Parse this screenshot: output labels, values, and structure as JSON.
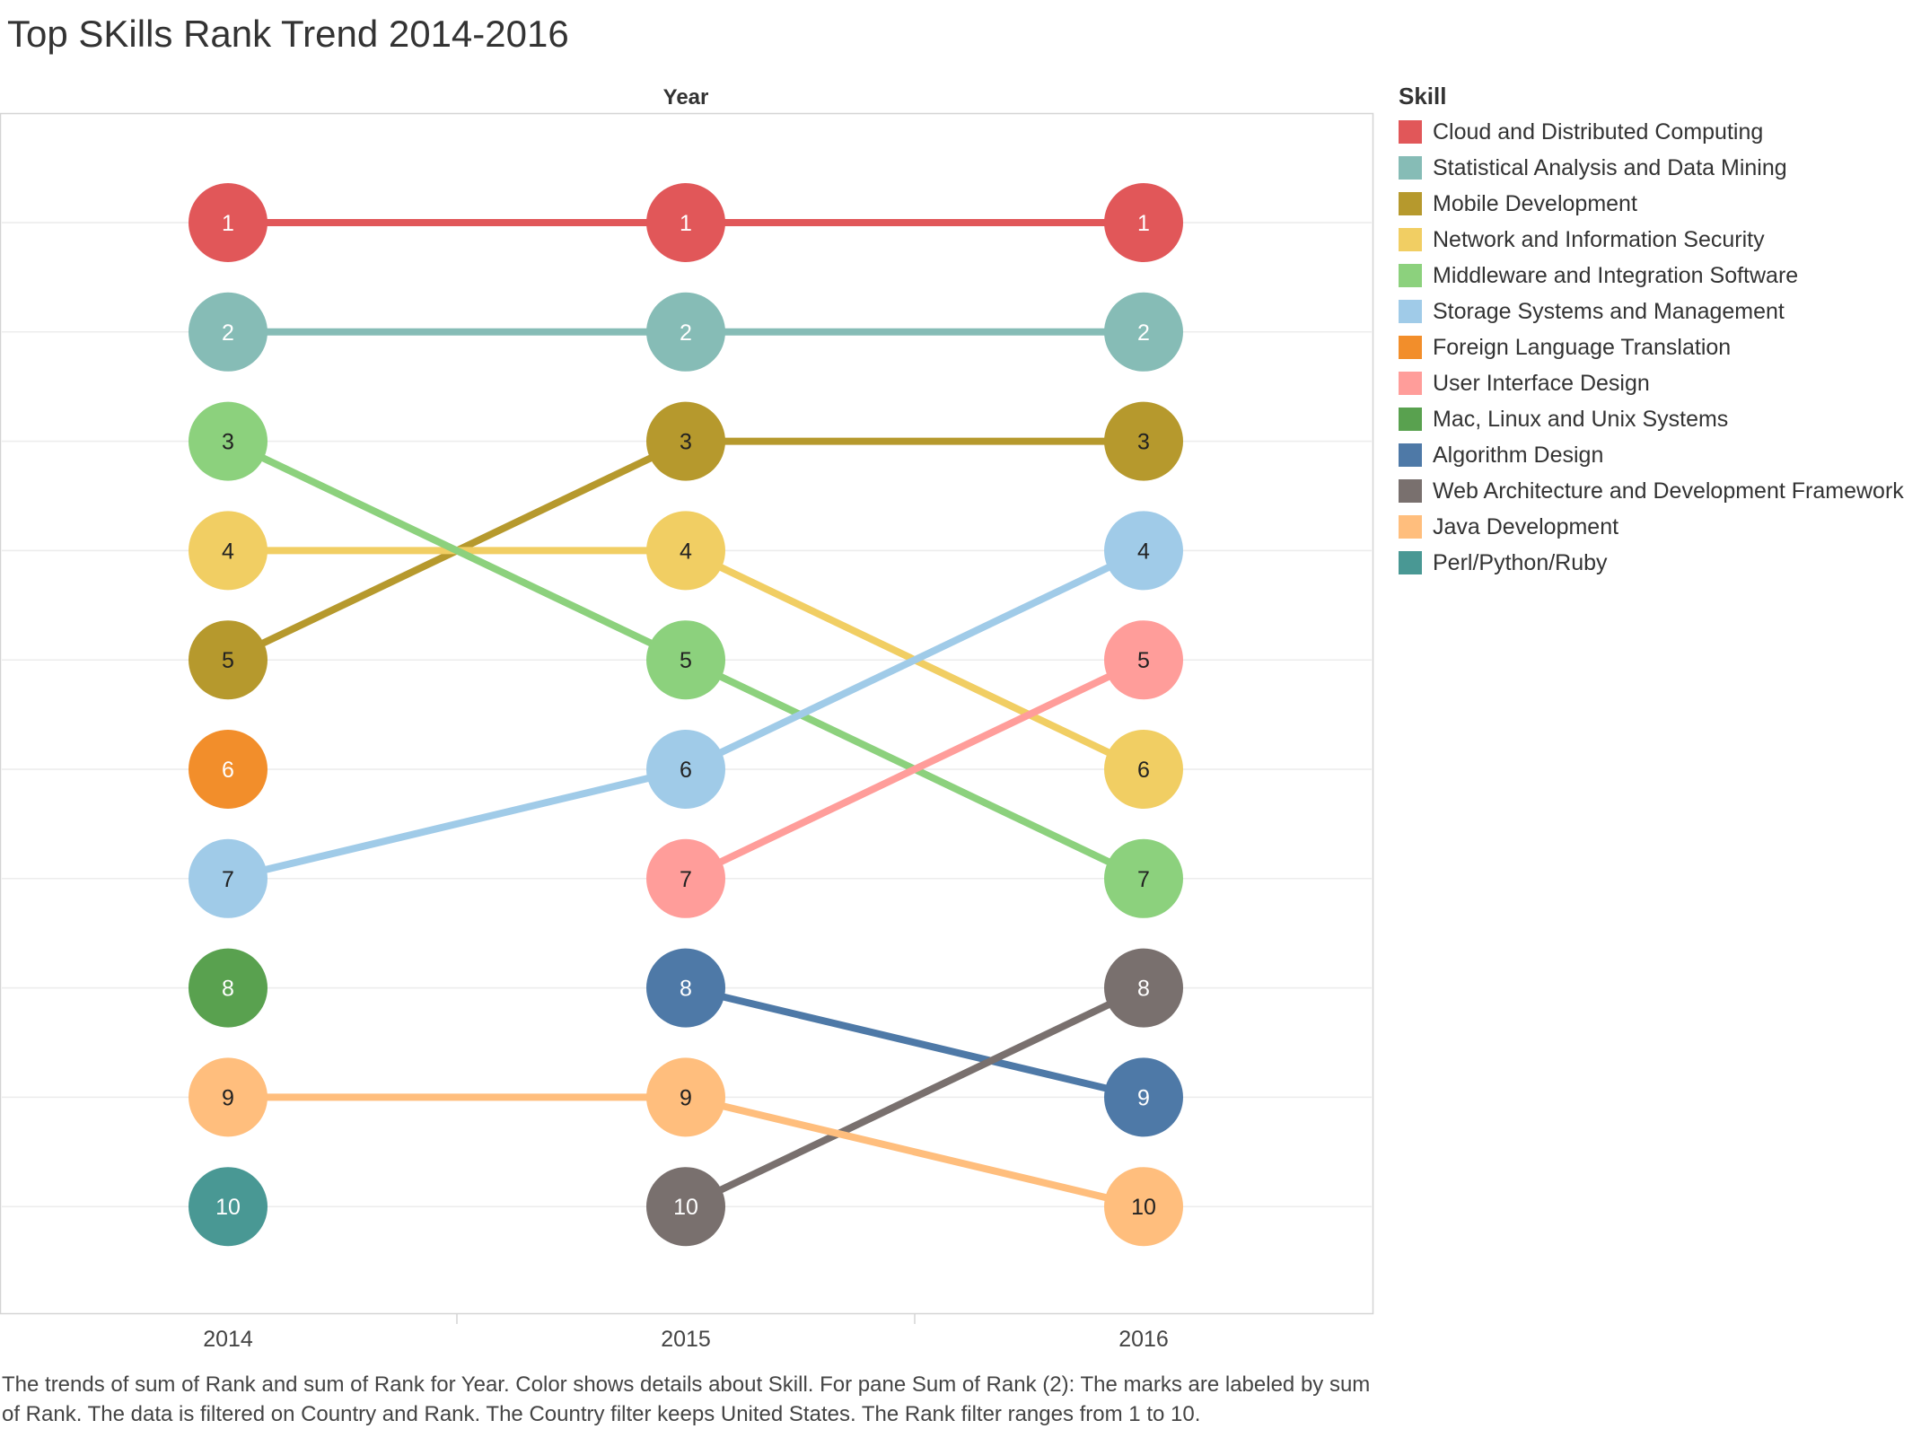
{
  "title": "Top SKills Rank Trend 2014-2016",
  "chart_data": {
    "type": "line",
    "x_title": "Year",
    "x": [
      "2014",
      "2015",
      "2016"
    ],
    "ylim": [
      1,
      10
    ],
    "y_reversed": true,
    "grid": true,
    "legend_title": "Skill",
    "legend_position": "right",
    "series": [
      {
        "name": "Cloud and Distributed Computing",
        "color": "#E15759",
        "values": [
          1,
          1,
          1
        ]
      },
      {
        "name": "Statistical Analysis and Data Mining",
        "color": "#86BCB6",
        "values": [
          2,
          2,
          2
        ]
      },
      {
        "name": "Mobile Development",
        "color": "#B6992D",
        "values": [
          5,
          3,
          3
        ]
      },
      {
        "name": "Network and Information Security",
        "color": "#F1CE63",
        "values": [
          4,
          4,
          6
        ]
      },
      {
        "name": "Middleware and Integration Software",
        "color": "#8CD17D",
        "values": [
          3,
          5,
          7
        ]
      },
      {
        "name": "Storage Systems and Management",
        "color": "#A0CBE8",
        "values": [
          7,
          6,
          4
        ]
      },
      {
        "name": "Foreign Language Translation",
        "color": "#F28E2B",
        "values": [
          6,
          null,
          null
        ]
      },
      {
        "name": "User Interface Design",
        "color": "#FF9D9A",
        "values": [
          null,
          7,
          5
        ]
      },
      {
        "name": "Mac, Linux and Unix Systems",
        "color": "#59A14F",
        "values": [
          8,
          null,
          null
        ]
      },
      {
        "name": "Algorithm Design",
        "color": "#4E79A7",
        "values": [
          null,
          8,
          9
        ]
      },
      {
        "name": "Web Architecture and Development Framework",
        "color": "#79706E",
        "values": [
          null,
          10,
          8
        ]
      },
      {
        "name": "Java Development",
        "color": "#FFBE7D",
        "values": [
          9,
          9,
          10
        ]
      },
      {
        "name": "Perl/Python/Ruby",
        "color": "#499894",
        "values": [
          10,
          null,
          null
        ]
      }
    ]
  },
  "caption": "The trends of sum of Rank and sum of Rank for Year.  Color shows details about Skill.  For pane Sum of Rank (2):  The marks are labeled by sum of Rank. The data is filtered on Country and Rank. The Country filter keeps United States. The Rank filter ranges from 1 to 10."
}
